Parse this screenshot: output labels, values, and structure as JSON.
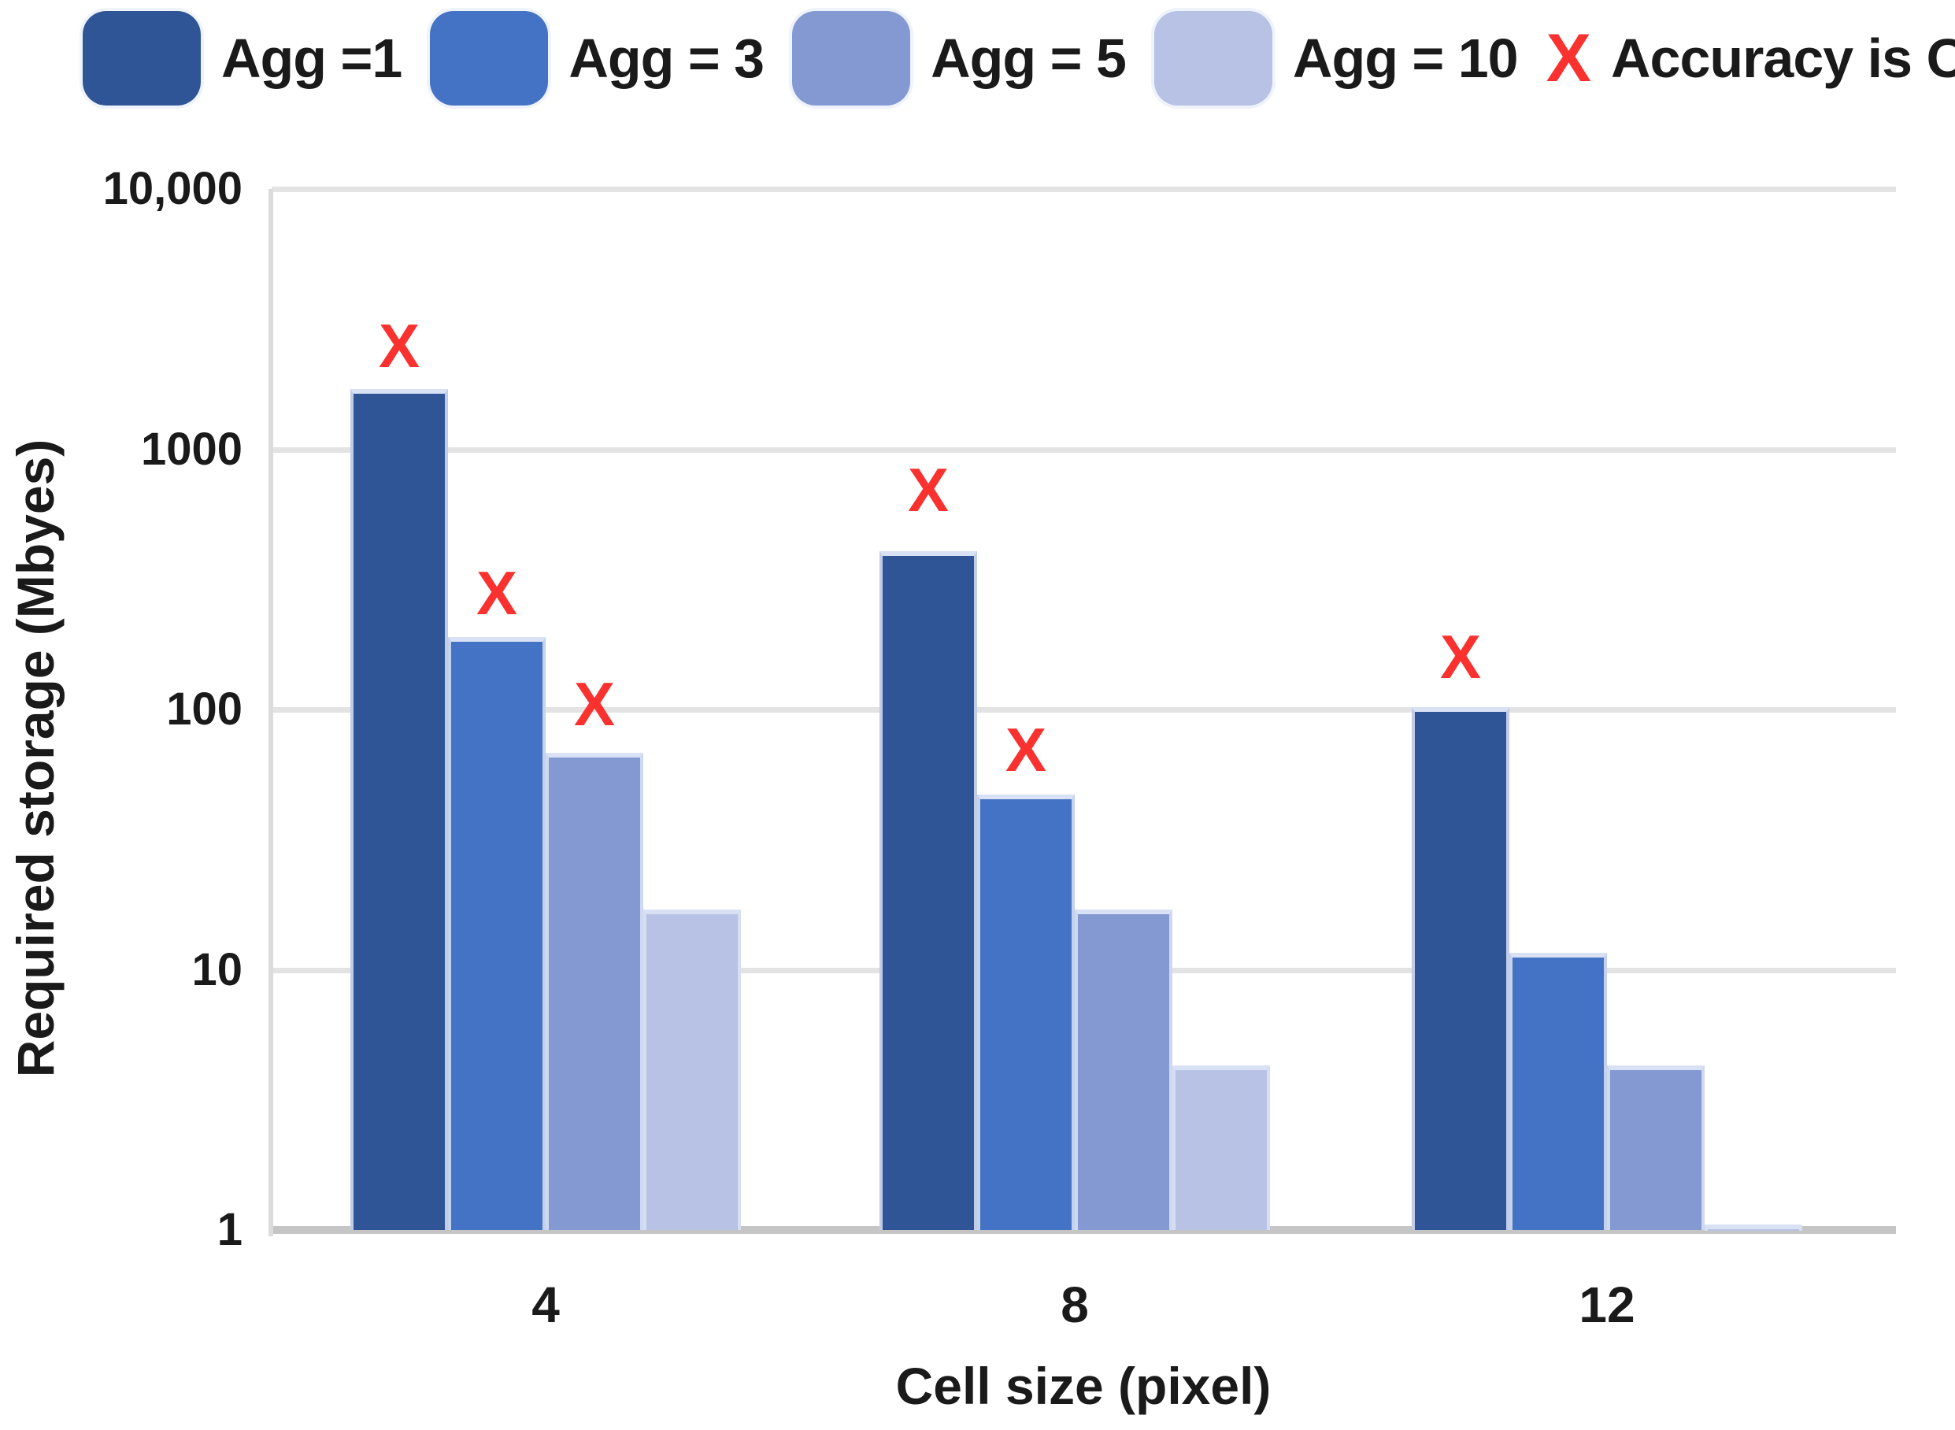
{
  "legend": {
    "items": [
      {
        "label": "Agg =1",
        "color": "#2F5597"
      },
      {
        "label": "Agg = 3",
        "color": "#4472C4"
      },
      {
        "label": "Agg = 5",
        "color": "#8499D2"
      },
      {
        "label": "Agg = 10",
        "color": "#B7C2E4"
      }
    ],
    "accuracy_symbol": "X",
    "accuracy_label": "Accuracy is OK",
    "accuracy_color": "#F9312F"
  },
  "chart_data": {
    "type": "bar",
    "title": "",
    "xlabel": "Cell size (pixel)",
    "ylabel": "Required storage (Mbyes)",
    "y_scale": "log",
    "ylim": [
      1,
      10000
    ],
    "grid": true,
    "legend_position": "top",
    "categories": [
      "4",
      "8",
      "12"
    ],
    "y_ticks": [
      {
        "label": "10,000",
        "value": 10000
      },
      {
        "label": "1000",
        "value": 1000
      },
      {
        "label": "100",
        "value": 100
      },
      {
        "label": "10",
        "value": 10
      },
      {
        "label": "1",
        "value": 1
      }
    ],
    "series": [
      {
        "name": "Agg =1",
        "color": "#2F5597",
        "values": [
          1700,
          405,
          102
        ]
      },
      {
        "name": "Agg = 3",
        "color": "#4472C4",
        "values": [
          190,
          47,
          11.6
        ]
      },
      {
        "name": "Agg = 5",
        "color": "#8499D2",
        "values": [
          68,
          17,
          4.3
        ]
      },
      {
        "name": "Agg = 10",
        "color": "#B7C2E4",
        "values": [
          17,
          4.3,
          1.05
        ]
      }
    ],
    "accuracy_marks": [
      {
        "category": "4",
        "series": "Agg =1",
        "value": 2500
      },
      {
        "category": "4",
        "series": "Agg = 3",
        "value": 280
      },
      {
        "category": "4",
        "series": "Agg = 5",
        "value": 105
      },
      {
        "category": "8",
        "series": "Agg =1",
        "value": 700
      },
      {
        "category": "8",
        "series": "Agg = 3",
        "value": 70
      },
      {
        "category": "12",
        "series": "Agg =1",
        "value": 160
      }
    ]
  }
}
